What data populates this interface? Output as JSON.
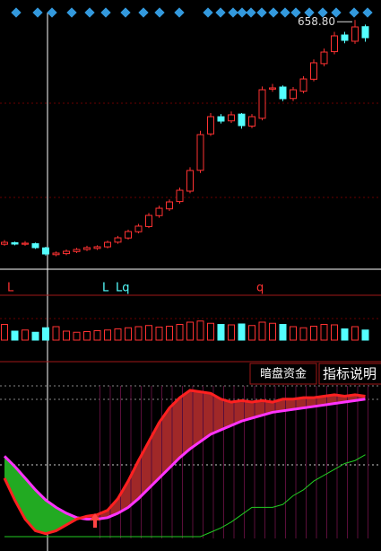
{
  "chart_data": [
    {
      "type": "candlestick",
      "high_label": "658.80",
      "markers": [
        "L",
        "L",
        "Lq",
        "q"
      ],
      "ylim": [
        180,
        680
      ],
      "up_color": "#ff3232",
      "down_color": "#54ffff",
      "open": [
        228,
        231,
        228,
        229,
        221,
        208,
        210,
        214,
        218,
        220,
        223,
        232,
        240,
        252,
        262,
        283,
        296,
        310,
        330,
        370,
        440,
        473,
        465,
        478,
        455,
        470,
        526,
        530,
        508,
        522,
        545,
        575,
        598,
        630,
        618,
        646
      ],
      "close": [
        231.7,
        228.3,
        230,
        221.4,
        209.3,
        211,
        214.5,
        217.9,
        221.4,
        223.1,
        231.7,
        240.3,
        252.4,
        262.8,
        283.4,
        297.2,
        309.3,
        331.7,
        369.7,
        438.6,
        473.1,
        464.5,
        476.6,
        455.9,
        473.1,
        524.8,
        528.3,
        507.6,
        524.8,
        545.5,
        576.6,
        597.2,
        628.3,
        619.7,
        645.5,
        624.8
      ],
      "high": [
        236,
        233,
        234,
        231,
        223,
        214,
        218,
        221,
        225,
        226,
        235,
        244,
        256,
        267,
        288,
        302,
        314,
        337,
        376,
        446,
        480,
        478,
        483,
        480,
        478,
        531,
        536,
        533,
        530,
        551,
        583,
        604,
        636,
        636,
        658.8,
        650
      ],
      "low": [
        225,
        226,
        225,
        219,
        206,
        205,
        207,
        211,
        215,
        217,
        220,
        229,
        237,
        249,
        259,
        279,
        292,
        306,
        326,
        365,
        436,
        460,
        461,
        450,
        451,
        466,
        521,
        503,
        503,
        518,
        541,
        570,
        593,
        614,
        613,
        617
      ]
    },
    {
      "type": "bar",
      "ylim": [
        0,
        100
      ],
      "values": [
        70,
        40,
        45,
        35,
        55,
        60,
        40,
        35,
        38,
        42,
        45,
        50,
        55,
        60,
        65,
        58,
        62,
        70,
        80,
        85,
        75,
        70,
        68,
        72,
        65,
        80,
        75,
        70,
        60,
        55,
        62,
        70,
        68,
        50,
        60,
        45
      ]
    },
    {
      "type": "line",
      "ylim": [
        0,
        100
      ],
      "series": [
        {
          "color": "#ff33ff",
          "values": [
            55,
            48,
            40,
            32,
            25,
            20,
            16,
            13,
            12,
            12,
            13,
            16,
            20,
            26,
            33,
            40,
            47,
            54,
            60,
            65,
            70,
            73,
            76,
            79,
            81,
            83,
            85,
            86,
            87,
            88,
            89,
            90,
            91,
            92,
            93,
            94
          ]
        },
        {
          "color": "#ff2020",
          "values": [
            40,
            25,
            12,
            4,
            2,
            4,
            8,
            12,
            14,
            15,
            18,
            26,
            38,
            52,
            65,
            78,
            88,
            95,
            100,
            99,
            98,
            94,
            92,
            93,
            92,
            93,
            92,
            94,
            94,
            95,
            95,
            96,
            97,
            96,
            97,
            96
          ]
        },
        {
          "color": "#22cc22",
          "values": [
            0,
            0,
            0,
            0,
            0,
            0,
            0,
            0,
            0,
            0,
            0,
            0,
            0,
            0,
            0,
            0,
            0,
            0,
            0,
            0,
            3,
            6,
            10,
            15,
            20,
            20,
            20,
            22,
            28,
            32,
            38,
            42,
            46,
            50,
            52,
            56
          ]
        }
      ]
    }
  ],
  "buttons": [
    "暗盘资金",
    "指标说明"
  ]
}
